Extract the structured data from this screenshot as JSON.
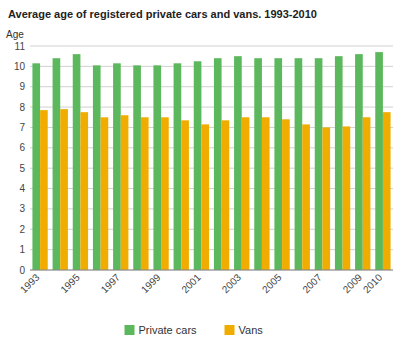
{
  "chart_data": {
    "type": "bar",
    "title": "Average age of registered private cars and vans. 1993-2010",
    "ylabel": "Age",
    "categories": [
      "1993",
      null,
      "1995",
      null,
      "1997",
      null,
      "1999",
      null,
      "2001",
      null,
      "2003",
      null,
      "2005",
      null,
      "2007",
      null,
      "2009",
      "2010"
    ],
    "series": [
      {
        "name": "Private cars",
        "color": "#5CB85C",
        "values": [
          10.15,
          10.4,
          10.6,
          10.05,
          10.15,
          10.05,
          10.05,
          10.15,
          10.25,
          10.4,
          10.5,
          10.4,
          10.4,
          10.4,
          10.4,
          10.5,
          10.6,
          10.7
        ]
      },
      {
        "name": "Vans",
        "color": "#F0AD00",
        "values": [
          7.85,
          7.9,
          7.75,
          7.5,
          7.6,
          7.5,
          7.5,
          7.35,
          7.15,
          7.35,
          7.5,
          7.5,
          7.4,
          7.15,
          7.0,
          7.05,
          7.5,
          7.75
        ]
      }
    ],
    "ylim": [
      0,
      11
    ],
    "yticks": [
      0,
      1,
      2,
      3,
      4,
      5,
      6,
      7,
      8,
      9,
      10,
      11
    ],
    "grid": true,
    "legend": "bottom"
  }
}
